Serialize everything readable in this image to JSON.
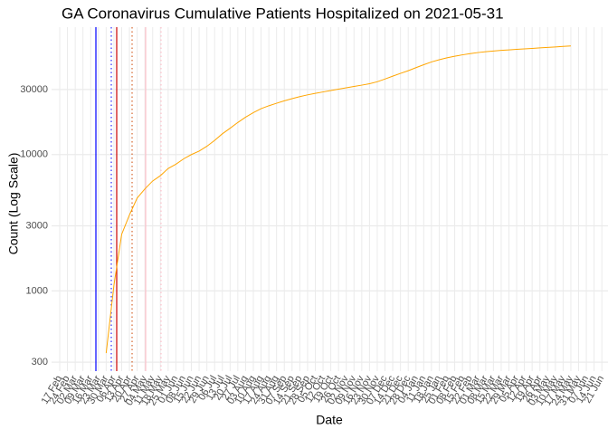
{
  "chart_data": {
    "type": "line",
    "title": "GA Coronavirus Cumulative Patients Hospitalized on 2021-05-31",
    "x_label": "Date",
    "y_label": "Count (Log Scale)",
    "log_scale": true,
    "grid": true,
    "color": "#ffa500",
    "categories": [
      "17 Feb",
      "24 Feb",
      "02 Mar",
      "09 Mar",
      "16 Mar",
      "23 Mar",
      "30 Mar",
      "06 Apr",
      "13 Apr",
      "20 Apr",
      "27 Apr",
      "04 May",
      "11 May",
      "18 May",
      "25 May",
      "01 Jun",
      "08 Jun",
      "15 Jun",
      "22 Jun",
      "29 Jun",
      "06 Jul",
      "13 Jul",
      "20 Jul",
      "27 Jul",
      "03 Aug",
      "10 Aug",
      "17 Aug",
      "24 Aug",
      "31 Aug",
      "07 Sep",
      "14 Sep",
      "21 Sep",
      "28 Sep",
      "05 Oct",
      "12 Oct",
      "19 Oct",
      "26 Oct",
      "02 Nov",
      "09 Nov",
      "16 Nov",
      "23 Nov",
      "30 Nov",
      "07 Dec",
      "14 Dec",
      "21 Dec",
      "28 Dec",
      "04 Jan",
      "11 Jan",
      "18 Jan",
      "25 Jan",
      "01 Feb",
      "08 Feb",
      "15 Feb",
      "22 Feb",
      "01 Mar",
      "08 Mar",
      "15 Mar",
      "22 Mar",
      "29 Mar",
      "05 Apr",
      "12 Apr",
      "19 Apr",
      "26 Apr",
      "03 May",
      "10 May",
      "17 May",
      "24 May",
      "31 May",
      "07 Jun",
      "14 Jun",
      "21 Jun"
    ],
    "values": [
      null,
      null,
      null,
      null,
      null,
      null,
      350,
      1100,
      2600,
      3600,
      4800,
      5600,
      6400,
      7000,
      7900,
      8500,
      9300,
      10000,
      10600,
      11500,
      12700,
      14200,
      15600,
      17200,
      18800,
      20300,
      21700,
      22800,
      23800,
      24800,
      25700,
      26600,
      27400,
      28100,
      28800,
      29500,
      30200,
      30900,
      31600,
      32300,
      33100,
      34200,
      35800,
      37600,
      39400,
      41200,
      43400,
      45600,
      47800,
      49600,
      51200,
      52600,
      53900,
      55000,
      56000,
      56800,
      57500,
      58100,
      58600,
      59100,
      59600,
      60100,
      60600,
      61100,
      61600,
      62100,
      62600,
      null,
      null,
      null,
      null
    ],
    "ylim": [
      258,
      86000
    ],
    "yticks": [
      300,
      1000,
      3000,
      10000,
      30000
    ]
  }
}
